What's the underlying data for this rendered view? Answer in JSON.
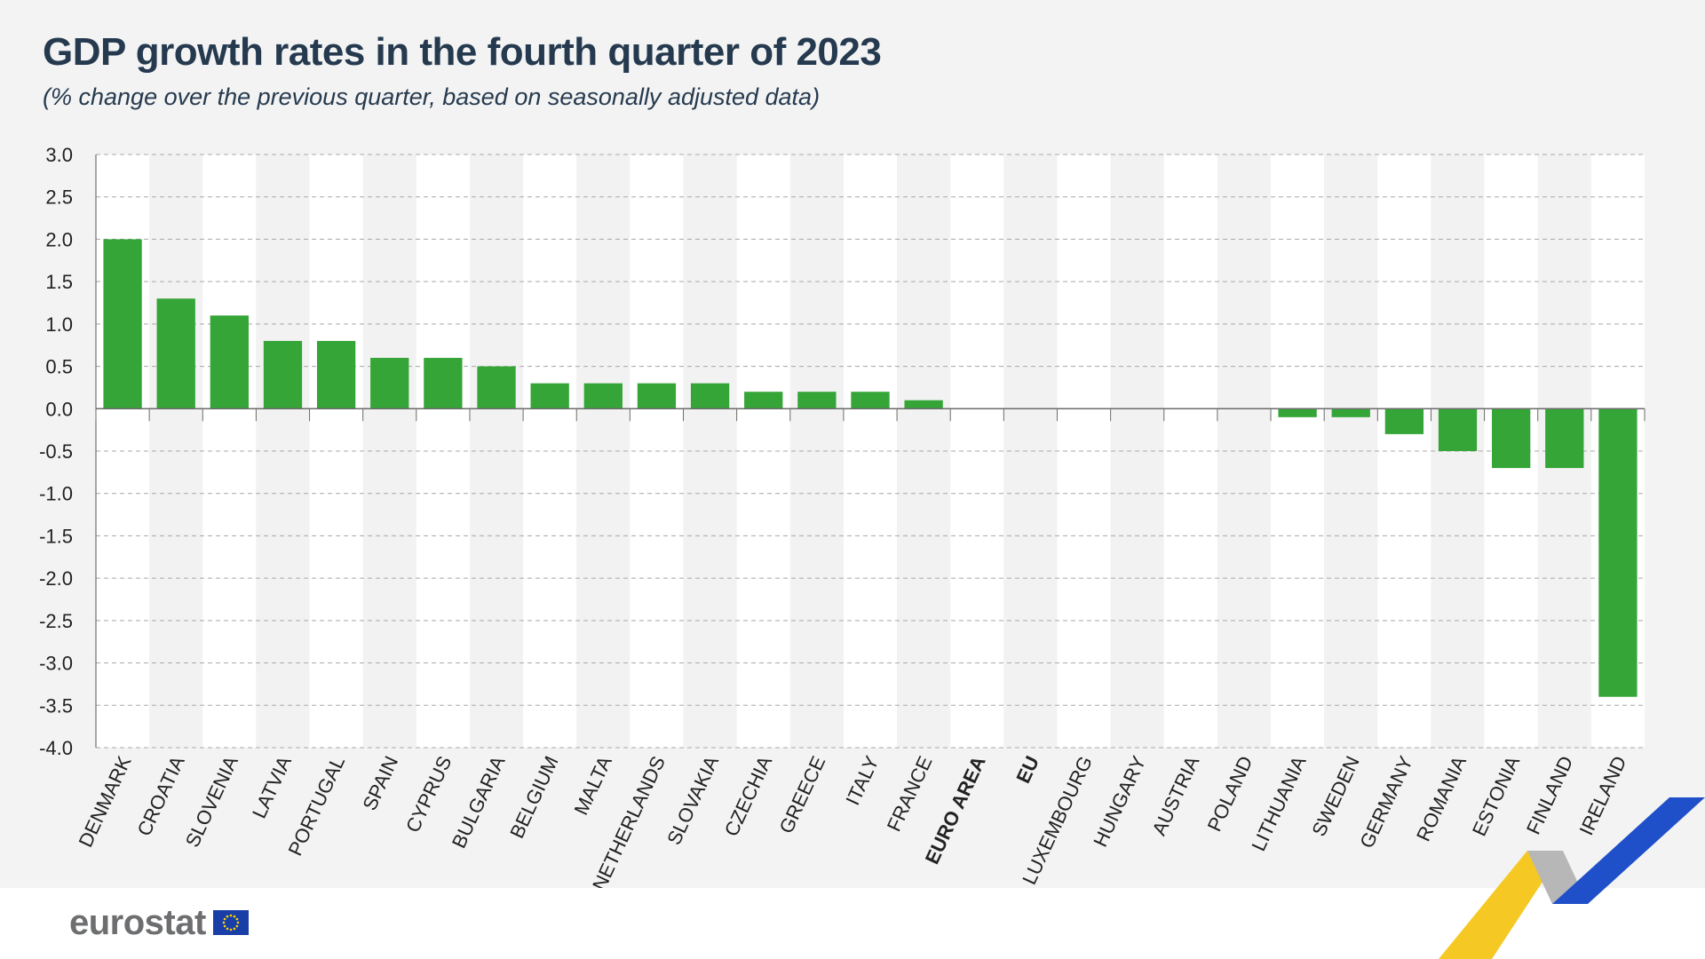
{
  "header": {
    "title": "GDP growth rates in the fourth quarter of 2023",
    "subtitle": "(% change over the previous quarter, based on seasonally adjusted data)"
  },
  "brand": {
    "name": "eurostat",
    "flag_icon": "eu-flag-icon",
    "colors": {
      "bar": "#35a538",
      "title": "#263a4f",
      "ribbon_yellow": "#f5c518",
      "ribbon_blue": "#1f4fc9",
      "ribbon_grey": "#b7b7b7"
    }
  },
  "chart_data": {
    "type": "bar",
    "categories": [
      "DENMARK",
      "CROATIA",
      "SLOVENIA",
      "LATVIA",
      "PORTUGAL",
      "SPAIN",
      "CYPRUS",
      "BULGARIA",
      "BELGIUM",
      "MALTA",
      "NETHERLANDS",
      "SLOVAKIA",
      "CZECHIA",
      "GREECE",
      "ITALY",
      "FRANCE",
      "EURO AREA",
      "EU",
      "LUXEMBOURG",
      "HUNGARY",
      "AUSTRIA",
      "POLAND",
      "LITHUANIA",
      "SWEDEN",
      "GERMANY",
      "ROMANIA",
      "ESTONIA",
      "FINLAND",
      "IRELAND"
    ],
    "bold_categories": [
      "EURO AREA",
      "EU"
    ],
    "values": [
      2.0,
      1.3,
      1.1,
      0.8,
      0.8,
      0.6,
      0.6,
      0.5,
      0.3,
      0.3,
      0.3,
      0.3,
      0.2,
      0.2,
      0.2,
      0.1,
      0.0,
      0.0,
      0.0,
      0.0,
      0.0,
      0.0,
      -0.1,
      -0.1,
      -0.3,
      -0.5,
      -0.7,
      -0.7,
      -3.4
    ],
    "yticks": [
      "3.0",
      "2.5",
      "2.0",
      "1.5",
      "1.0",
      "0.5",
      "0.0",
      "-0.5",
      "-1.0",
      "-1.5",
      "-2.0",
      "-2.5",
      "-3.0",
      "-3.5",
      "-4.0"
    ],
    "ylim": [
      -4.0,
      3.0
    ],
    "grid": true,
    "legend": "none"
  }
}
